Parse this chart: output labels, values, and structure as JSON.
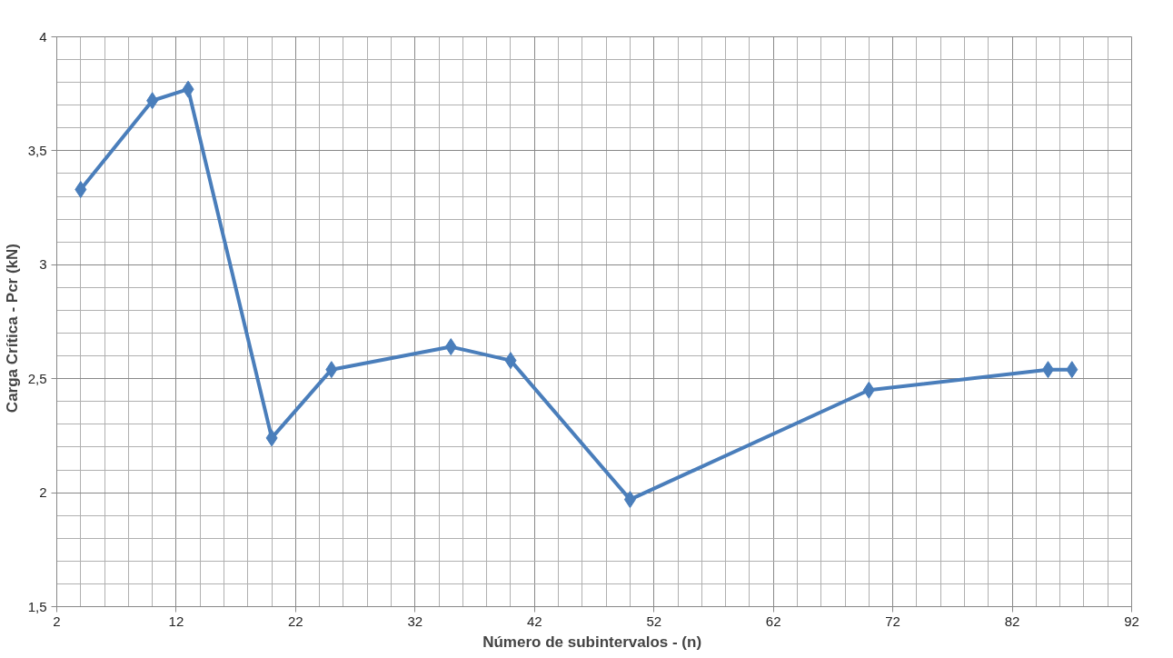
{
  "chart_data": {
    "type": "line",
    "xlabel": "Número de subintervalos  - (n)",
    "ylabel": "Carga  Crítica  -  Pcr (kN)",
    "x": [
      4,
      10,
      13,
      20,
      25,
      35,
      40,
      50,
      70,
      85,
      87
    ],
    "series": [
      {
        "color": "#4a7ebb",
        "values": [
          3.33,
          3.72,
          3.77,
          2.24,
          2.54,
          2.64,
          2.58,
          1.97,
          2.45,
          2.54,
          2.54
        ]
      }
    ],
    "xlim": [
      2,
      92
    ],
    "xticks": [
      2,
      12,
      22,
      32,
      42,
      52,
      62,
      72,
      82,
      92
    ],
    "ylim": [
      1.5,
      4
    ],
    "yticks": [
      {
        "value": 1.5,
        "label": "1,5"
      },
      {
        "value": 2,
        "label": "2"
      },
      {
        "value": 2.5,
        "label": "2,5"
      },
      {
        "value": 3,
        "label": "3"
      },
      {
        "value": 3.5,
        "label": "3,5"
      },
      {
        "value": 4,
        "label": "4"
      }
    ],
    "grid": true,
    "marker": "diamond",
    "line_style": "solid"
  }
}
